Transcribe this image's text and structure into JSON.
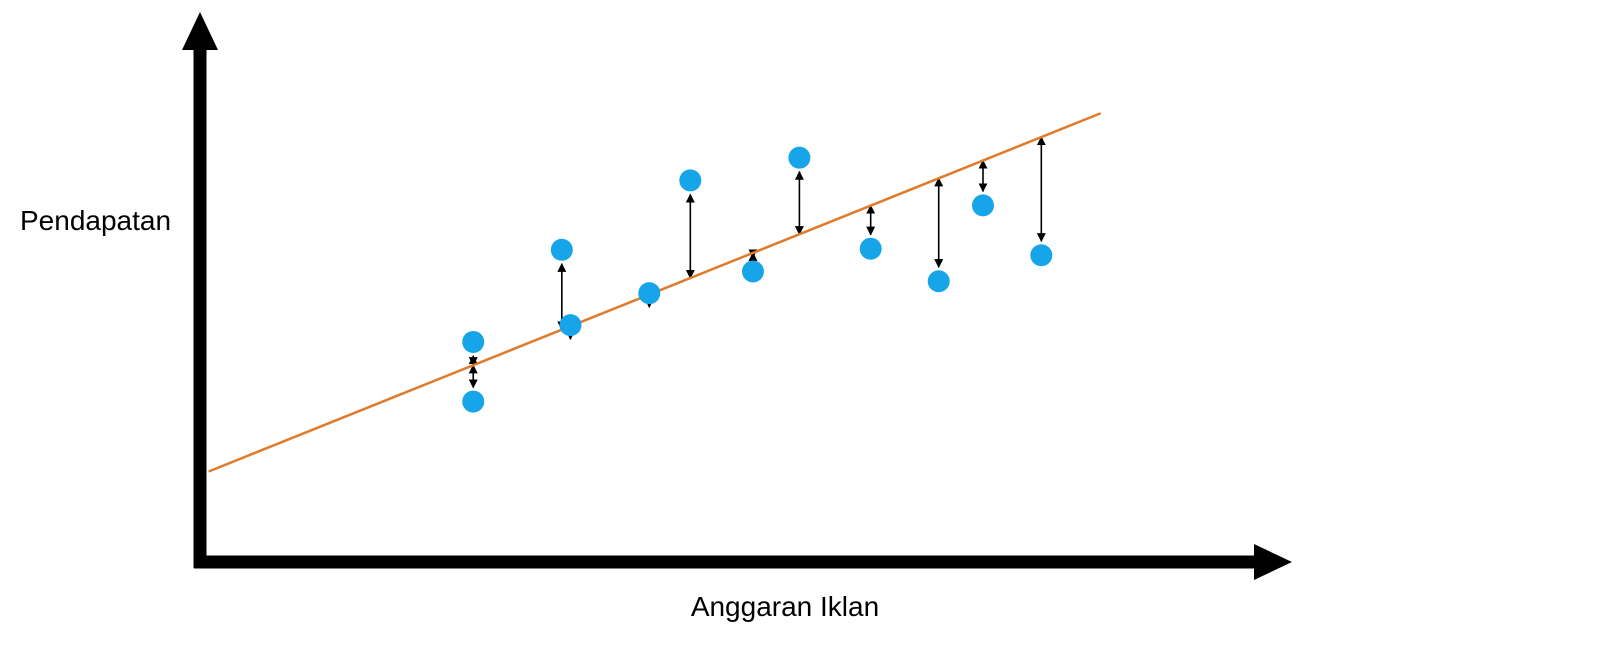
{
  "chart_data": {
    "type": "scatter",
    "title": "",
    "xlabel": "Anggaran Iklan",
    "ylabel": "Pendapatan",
    "xlim": [
      0,
      100
    ],
    "ylim": [
      0,
      100
    ],
    "grid": false,
    "ticks": false,
    "series": [
      {
        "type": "scatter",
        "color": "#17a5ea",
        "points": [
          {
            "x": 25.3,
            "y": 40.6
          },
          {
            "x": 25.3,
            "y": 29.6
          },
          {
            "x": 33.5,
            "y": 57.6
          },
          {
            "x": 34.3,
            "y": 43.7
          },
          {
            "x": 41.6,
            "y": 49.6
          },
          {
            "x": 45.4,
            "y": 70.4
          },
          {
            "x": 51.2,
            "y": 53.6
          },
          {
            "x": 55.5,
            "y": 74.6
          },
          {
            "x": 62.1,
            "y": 57.8
          },
          {
            "x": 68.4,
            "y": 51.8
          },
          {
            "x": 72.5,
            "y": 65.8
          },
          {
            "x": 77.9,
            "y": 56.6
          }
        ]
      },
      {
        "type": "line",
        "kind": "regression",
        "color": "#e07b2c",
        "points": [
          {
            "x": 0.8,
            "y": 16.7
          },
          {
            "x": 83.4,
            "y": 82.8
          }
        ]
      }
    ],
    "residuals": {
      "color": "#000000",
      "note": "double-headed arrows connecting each point to the regression line"
    }
  },
  "colors": {
    "axis": "#000000",
    "point": "#17a5ea",
    "regression_line": "#e07b2c",
    "residual_arrow": "#000000"
  }
}
